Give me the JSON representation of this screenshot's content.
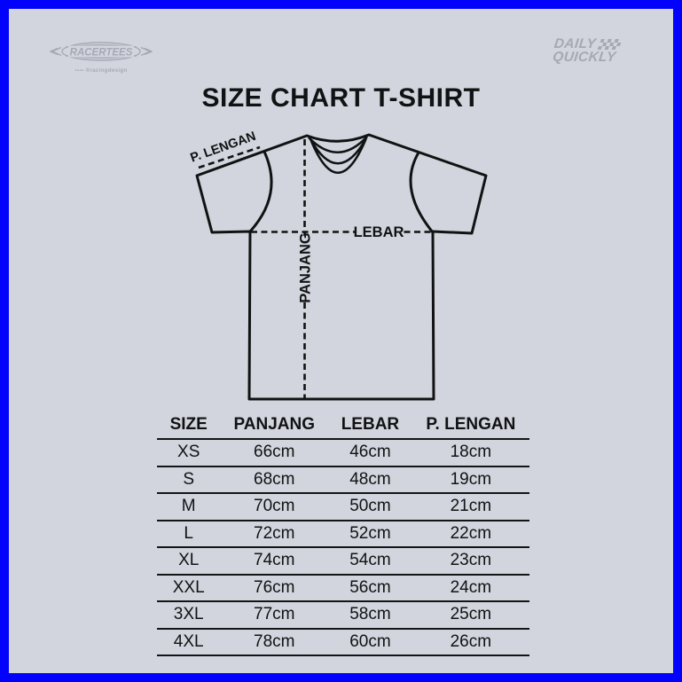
{
  "colors": {
    "background": "#D2D5DD",
    "border_blue": "#0202FC",
    "ink": "#111213",
    "logo_gray": "#A4A9B4"
  },
  "branding": {
    "racertees": {
      "name": "RACERTEES",
      "tagline": "▪▪▪▪ ®racingdesign"
    },
    "daily_quickly": {
      "line1": "DAILY",
      "line2": "QUICKLY"
    }
  },
  "title": "SIZE CHART T-SHIRT",
  "diagram": {
    "label_sleeve": "P. LENGAN",
    "label_width": "LEBAR",
    "label_length": "PANJANG"
  },
  "size_table": {
    "columns": [
      "SIZE",
      "PANJANG",
      "LEBAR",
      "P. LENGAN"
    ],
    "rows": [
      [
        "XS",
        "66cm",
        "46cm",
        "18cm"
      ],
      [
        "S",
        "68cm",
        "48cm",
        "19cm"
      ],
      [
        "M",
        "70cm",
        "50cm",
        "21cm"
      ],
      [
        "L",
        "72cm",
        "52cm",
        "22cm"
      ],
      [
        "XL",
        "74cm",
        "54cm",
        "23cm"
      ],
      [
        "XXL",
        "76cm",
        "56cm",
        "24cm"
      ],
      [
        "3XL",
        "77cm",
        "58cm",
        "25cm"
      ],
      [
        "4XL",
        "78cm",
        "60cm",
        "26cm"
      ]
    ]
  }
}
